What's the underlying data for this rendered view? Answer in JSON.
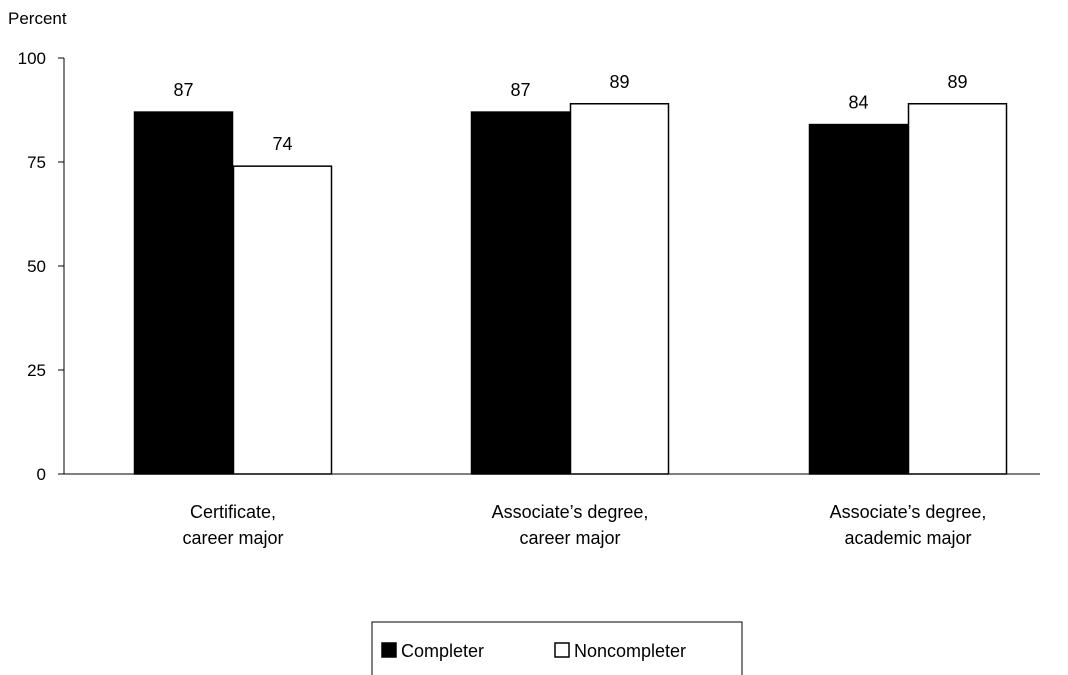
{
  "chart_data": {
    "type": "bar",
    "ylabel": "Percent",
    "ylim": [
      0,
      100
    ],
    "yticks": [
      0,
      25,
      50,
      75,
      100
    ],
    "categories": [
      [
        "Certificate,",
        "career major"
      ],
      [
        "Associate’s degree,",
        "career major"
      ],
      [
        "Associate’s degree,",
        "academic major"
      ]
    ],
    "series": [
      {
        "name": "Completer",
        "color": "#000000",
        "values": [
          87,
          87,
          84
        ]
      },
      {
        "name": "Noncompleter",
        "color": "#ffffff",
        "values": [
          74,
          89,
          89
        ]
      }
    ],
    "data_labels": true,
    "grid": false,
    "legend_position": "bottom-center"
  }
}
